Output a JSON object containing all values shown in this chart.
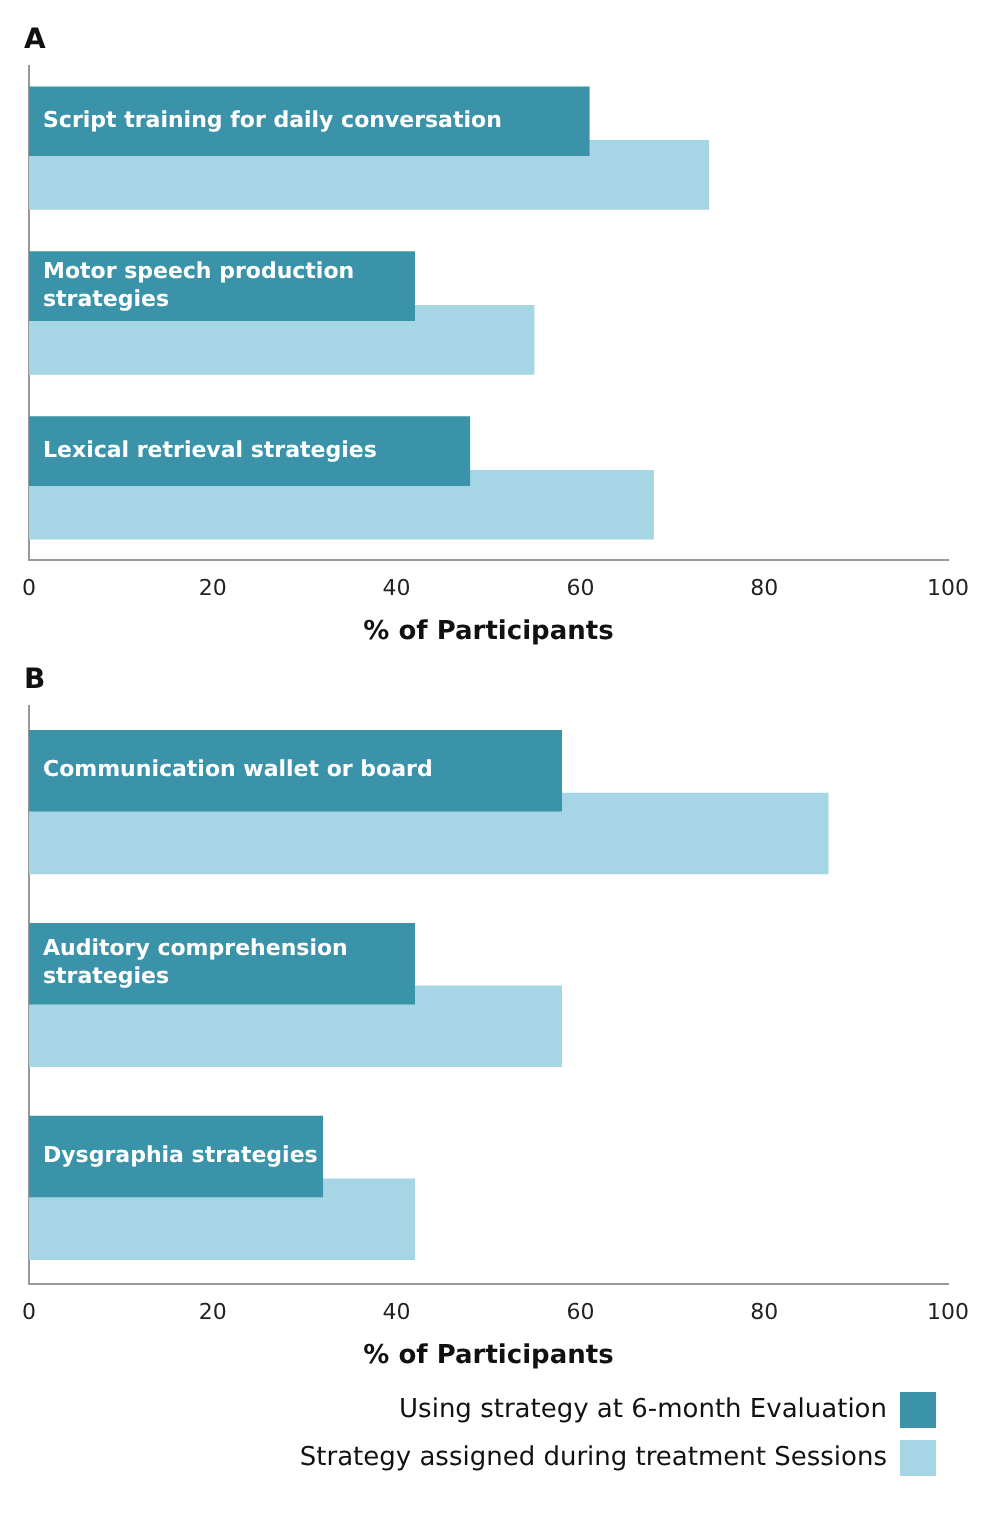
{
  "chart_data": [
    {
      "type": "bar",
      "orientation": "horizontal",
      "title": "A",
      "categories": [
        "Script training for daily conversation",
        "Motor speech production strategies",
        "Lexical retrieval strategies"
      ],
      "series": [
        {
          "color": "#3a93a8",
          "values": [
            61,
            42,
            48
          ]
        },
        {
          "color": "#a6d5e5",
          "values": [
            74,
            55,
            68
          ]
        }
      ],
      "xlabel": "% of Participants",
      "xlim": [
        0,
        100
      ],
      "xticks": [
        0,
        20,
        40,
        60,
        80,
        100
      ],
      "tick_labels": "x",
      "grid": false,
      "legend": false
    },
    {
      "type": "bar",
      "orientation": "horizontal",
      "title": "B",
      "categories": [
        "Communication wallet or board",
        "Auditory comprehension strategies",
        "Dysgraphia strategies"
      ],
      "series": [
        {
          "name": "Using strategy at 6-month Evaluation",
          "color": "#3a93a8",
          "values": [
            58,
            42,
            32
          ]
        },
        {
          "name": "Strategy assigned during treatment Sessions",
          "color": "#a6d5e5",
          "values": [
            87,
            58,
            42
          ]
        }
      ],
      "xlabel": "% of Participants",
      "xlim": [
        0,
        100
      ],
      "xticks": [
        0,
        20,
        40,
        60,
        80,
        100
      ],
      "tick_labels": "x",
      "grid": false,
      "legend": "bottom right"
    }
  ]
}
